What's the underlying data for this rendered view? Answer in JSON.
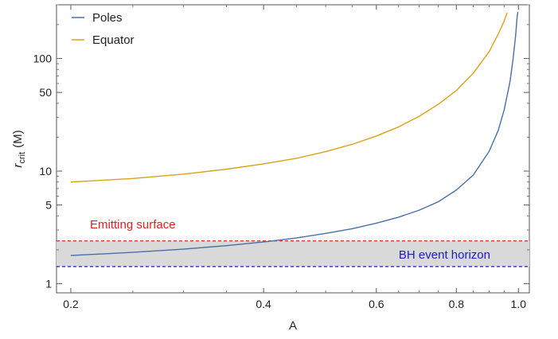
{
  "chart_data": {
    "type": "line",
    "title": "",
    "xlabel": "A",
    "ylabel": {
      "main": "r",
      "sub": "crit",
      "unit": "(M)"
    },
    "xscale": "log",
    "yscale": "log",
    "xlim": [
      0.19,
      1.04
    ],
    "ylim": [
      0.83,
      300
    ],
    "x_ticks": [
      {
        "v": 0.2,
        "label": "0.2"
      },
      {
        "v": 0.4,
        "label": "0.4"
      },
      {
        "v": 0.6,
        "label": "0.6"
      },
      {
        "v": 0.8,
        "label": "0.8"
      },
      {
        "v": 1.0,
        "label": "1.0"
      }
    ],
    "y_ticks": [
      {
        "v": 1,
        "label": "1"
      },
      {
        "v": 5,
        "label": "5"
      },
      {
        "v": 10,
        "label": "10"
      },
      {
        "v": 50,
        "label": "50"
      },
      {
        "v": 100,
        "label": "100"
      }
    ],
    "grid": false,
    "legend_position": "top-left",
    "series": [
      {
        "name": "Poles",
        "color": "#4a6fa5",
        "x": [
          0.2,
          0.25,
          0.3,
          0.35,
          0.4,
          0.45,
          0.5,
          0.55,
          0.6,
          0.65,
          0.7,
          0.75,
          0.8,
          0.85,
          0.9,
          0.93,
          0.95,
          0.97,
          0.98,
          0.99,
          0.995,
          0.998
        ],
        "y": [
          1.78,
          1.9,
          2.03,
          2.18,
          2.35,
          2.55,
          2.8,
          3.08,
          3.45,
          3.9,
          4.5,
          5.35,
          6.8,
          9.2,
          15,
          23,
          35,
          62,
          95,
          160,
          230,
          260
        ]
      },
      {
        "name": "Equator",
        "color": "#d9a21b",
        "x": [
          0.2,
          0.25,
          0.3,
          0.35,
          0.4,
          0.45,
          0.5,
          0.55,
          0.6,
          0.65,
          0.7,
          0.75,
          0.8,
          0.85,
          0.9,
          0.93,
          0.95,
          0.96
        ],
        "y": [
          8.0,
          8.6,
          9.4,
          10.4,
          11.6,
          13.0,
          14.9,
          17.3,
          20.5,
          24.7,
          30.7,
          39.3,
          52,
          74,
          115,
          165,
          215,
          255
        ]
      }
    ],
    "bands": [
      {
        "label": "Emitting surface",
        "value": 2.4,
        "color": "#e02020"
      },
      {
        "label": "BH event horizon",
        "value": 1.42,
        "color": "#1a1acc"
      }
    ],
    "band_fill": "#d9d9d9"
  }
}
